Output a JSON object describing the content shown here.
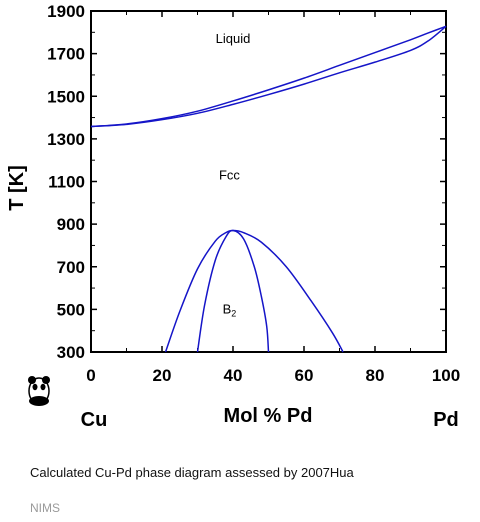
{
  "chart_data": {
    "type": "line",
    "ylabel": "T [K]",
    "xlabel": "Mol % Pd",
    "x_end_labels": {
      "left": "Cu",
      "right": "Pd"
    },
    "xlim": [
      0,
      100
    ],
    "ylim": [
      300,
      1900
    ],
    "x_ticks": [
      0,
      20,
      40,
      60,
      80,
      100
    ],
    "y_ticks": [
      300,
      500,
      700,
      900,
      1100,
      1300,
      1500,
      1700,
      1900
    ],
    "grid": false,
    "line_color": "#1515c8",
    "region_labels": [
      {
        "text": "Liquid",
        "x": 40,
        "y": 1750
      },
      {
        "text": "Fcc",
        "x": 39,
        "y": 1110
      },
      {
        "text": "B2",
        "base": "B",
        "sub": "2",
        "x": 39,
        "y": 480
      }
    ],
    "series": [
      {
        "x": [
          0,
          10,
          20,
          30,
          40,
          50,
          60,
          70,
          80,
          90,
          95,
          100
        ],
        "y": [
          1358,
          1370,
          1395,
          1430,
          1478,
          1530,
          1585,
          1645,
          1705,
          1765,
          1797,
          1828
        ]
      },
      {
        "x": [
          0,
          10,
          20,
          30,
          40,
          50,
          60,
          70,
          80,
          90,
          95,
          100
        ],
        "y": [
          1358,
          1368,
          1390,
          1420,
          1462,
          1508,
          1557,
          1610,
          1660,
          1715,
          1760,
          1828
        ]
      },
      {
        "x": [
          21,
          25,
          30,
          35,
          38,
          40,
          43,
          48,
          55,
          62,
          68,
          71
        ],
        "y": [
          300,
          490,
          690,
          820,
          860,
          870,
          860,
          815,
          700,
          540,
          390,
          300
        ]
      },
      {
        "x": [
          30,
          32,
          35,
          38,
          40,
          43,
          46,
          48,
          49.5,
          50
        ],
        "y": [
          300,
          520,
          730,
          840,
          870,
          830,
          700,
          560,
          420,
          300
        ]
      }
    ]
  },
  "caption": "Calculated Cu-Pd phase diagram assessed by 2007Hua",
  "source": "NIMS",
  "logo": "panda-logo"
}
